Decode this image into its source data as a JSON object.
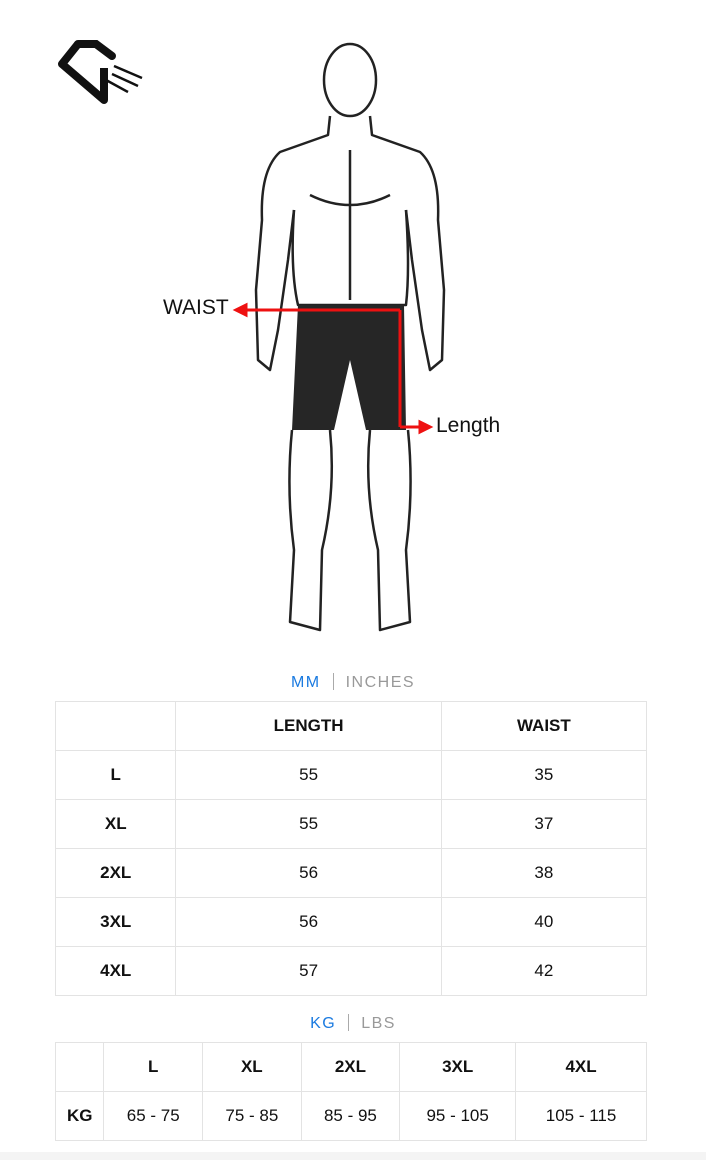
{
  "labels": {
    "waist": "WAIST",
    "length": "Length"
  },
  "unit_toggle_1": {
    "active": "MM",
    "inactive": "INCHES"
  },
  "size_table": {
    "headers": [
      "",
      "LENGTH",
      "WAIST"
    ],
    "rows": [
      [
        "L",
        "55",
        "35"
      ],
      [
        "XL",
        "55",
        "37"
      ],
      [
        "2XL",
        "56",
        "38"
      ],
      [
        "3XL",
        "56",
        "40"
      ],
      [
        "4XL",
        "57",
        "42"
      ]
    ]
  },
  "unit_toggle_2": {
    "active": "KG",
    "inactive": "LBS"
  },
  "weight_table": {
    "headers": [
      "",
      "L",
      "XL",
      "2XL",
      "3XL",
      "4XL"
    ],
    "rows": [
      [
        "KG",
        "65 - 75",
        "75 - 85",
        "85 - 95",
        "95 - 105",
        "105 - 115"
      ]
    ]
  },
  "colors": {
    "accent": "#1a7ae0",
    "arrow": "#ee1111"
  }
}
